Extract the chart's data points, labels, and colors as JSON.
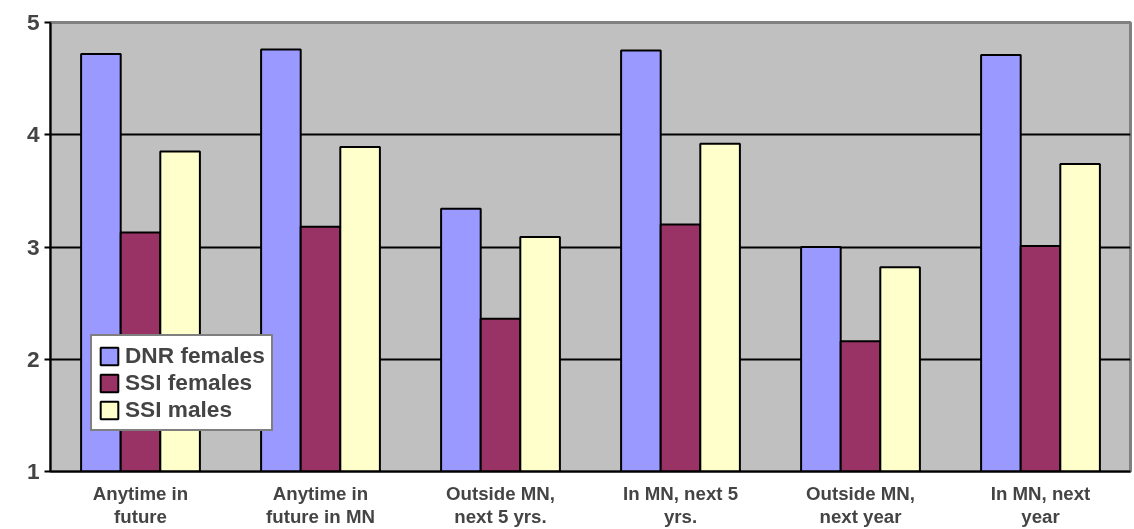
{
  "chart_data": {
    "type": "bar",
    "categories": [
      "Anytime in\nfuture",
      "Anytime in\nfuture in MN",
      "Outside MN,\nnext 5 yrs.",
      "In MN, next 5\nyrs.",
      "Outside MN,\nnext year",
      "In MN, next\nyear"
    ],
    "series": [
      {
        "name": "DNR females",
        "color": "#9999ff",
        "values": [
          4.72,
          4.76,
          3.34,
          4.75,
          3.0,
          4.71
        ]
      },
      {
        "name": "SSI females",
        "color": "#993366",
        "values": [
          3.13,
          3.18,
          2.36,
          3.2,
          2.16,
          3.01
        ]
      },
      {
        "name": "SSI males",
        "color": "#ffffcc",
        "values": [
          3.85,
          3.89,
          3.09,
          3.92,
          2.82,
          3.74
        ]
      }
    ],
    "ylim": [
      1,
      5
    ],
    "yticks": [
      1,
      2,
      3,
      4,
      5
    ],
    "grid": "y",
    "legend": "bottom left"
  }
}
